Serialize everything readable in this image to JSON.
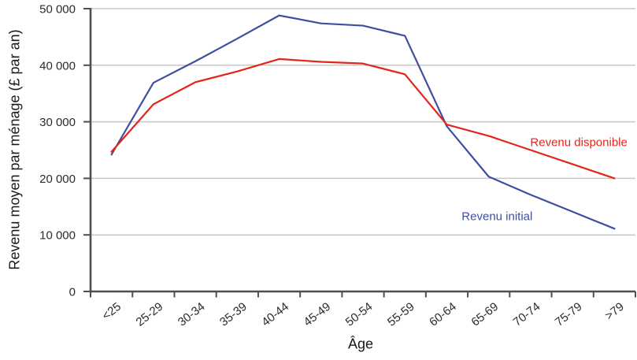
{
  "chart_data": {
    "type": "line",
    "title": "",
    "xlabel": "Âge",
    "ylabel": "Revenu moyen par ménage (£ par an)",
    "categories": [
      "<25",
      "25-29",
      "30-34",
      "35-39",
      "40-44",
      "45-49",
      "50-54",
      "55-59",
      "60-64",
      "65-69",
      "70-74",
      "75-79",
      ">79"
    ],
    "series": [
      {
        "name": "Revenu initial",
        "color": "#3e4fa1",
        "values": [
          24200,
          36900,
          40700,
          44700,
          48800,
          47400,
          47000,
          45200,
          29200,
          20300,
          17100,
          14100,
          11100
        ]
      },
      {
        "name": "Revenu disponible",
        "color": "#e2261c",
        "values": [
          24700,
          33100,
          37000,
          38900,
          41100,
          40600,
          40300,
          38400,
          29500,
          27500,
          25000,
          22500,
          20000
        ]
      }
    ],
    "ylim": [
      0,
      50000
    ],
    "yticks": [
      {
        "value": 0,
        "label": "0"
      },
      {
        "value": 10000,
        "label": "10 000"
      },
      {
        "value": 20000,
        "label": "20 000"
      },
      {
        "value": 30000,
        "label": "30 000"
      },
      {
        "value": 40000,
        "label": "40 000"
      },
      {
        "value": 50000,
        "label": "50 000"
      }
    ],
    "grid": "horizontal",
    "legend_position": "inline-labels",
    "annotations": [
      {
        "text": "Revenu disponible",
        "series": "Revenu disponible",
        "color": "#e2261c",
        "x_index": 11.15,
        "y": 26300
      },
      {
        "text": "Revenu initial",
        "series": "Revenu initial",
        "color": "#3e4fa1",
        "x_index": 9.2,
        "y": 13300
      }
    ],
    "axis_color": "#4f4f4f",
    "grid_color": "#c9c9c9",
    "tick_label_color": "#2b2b2b"
  }
}
